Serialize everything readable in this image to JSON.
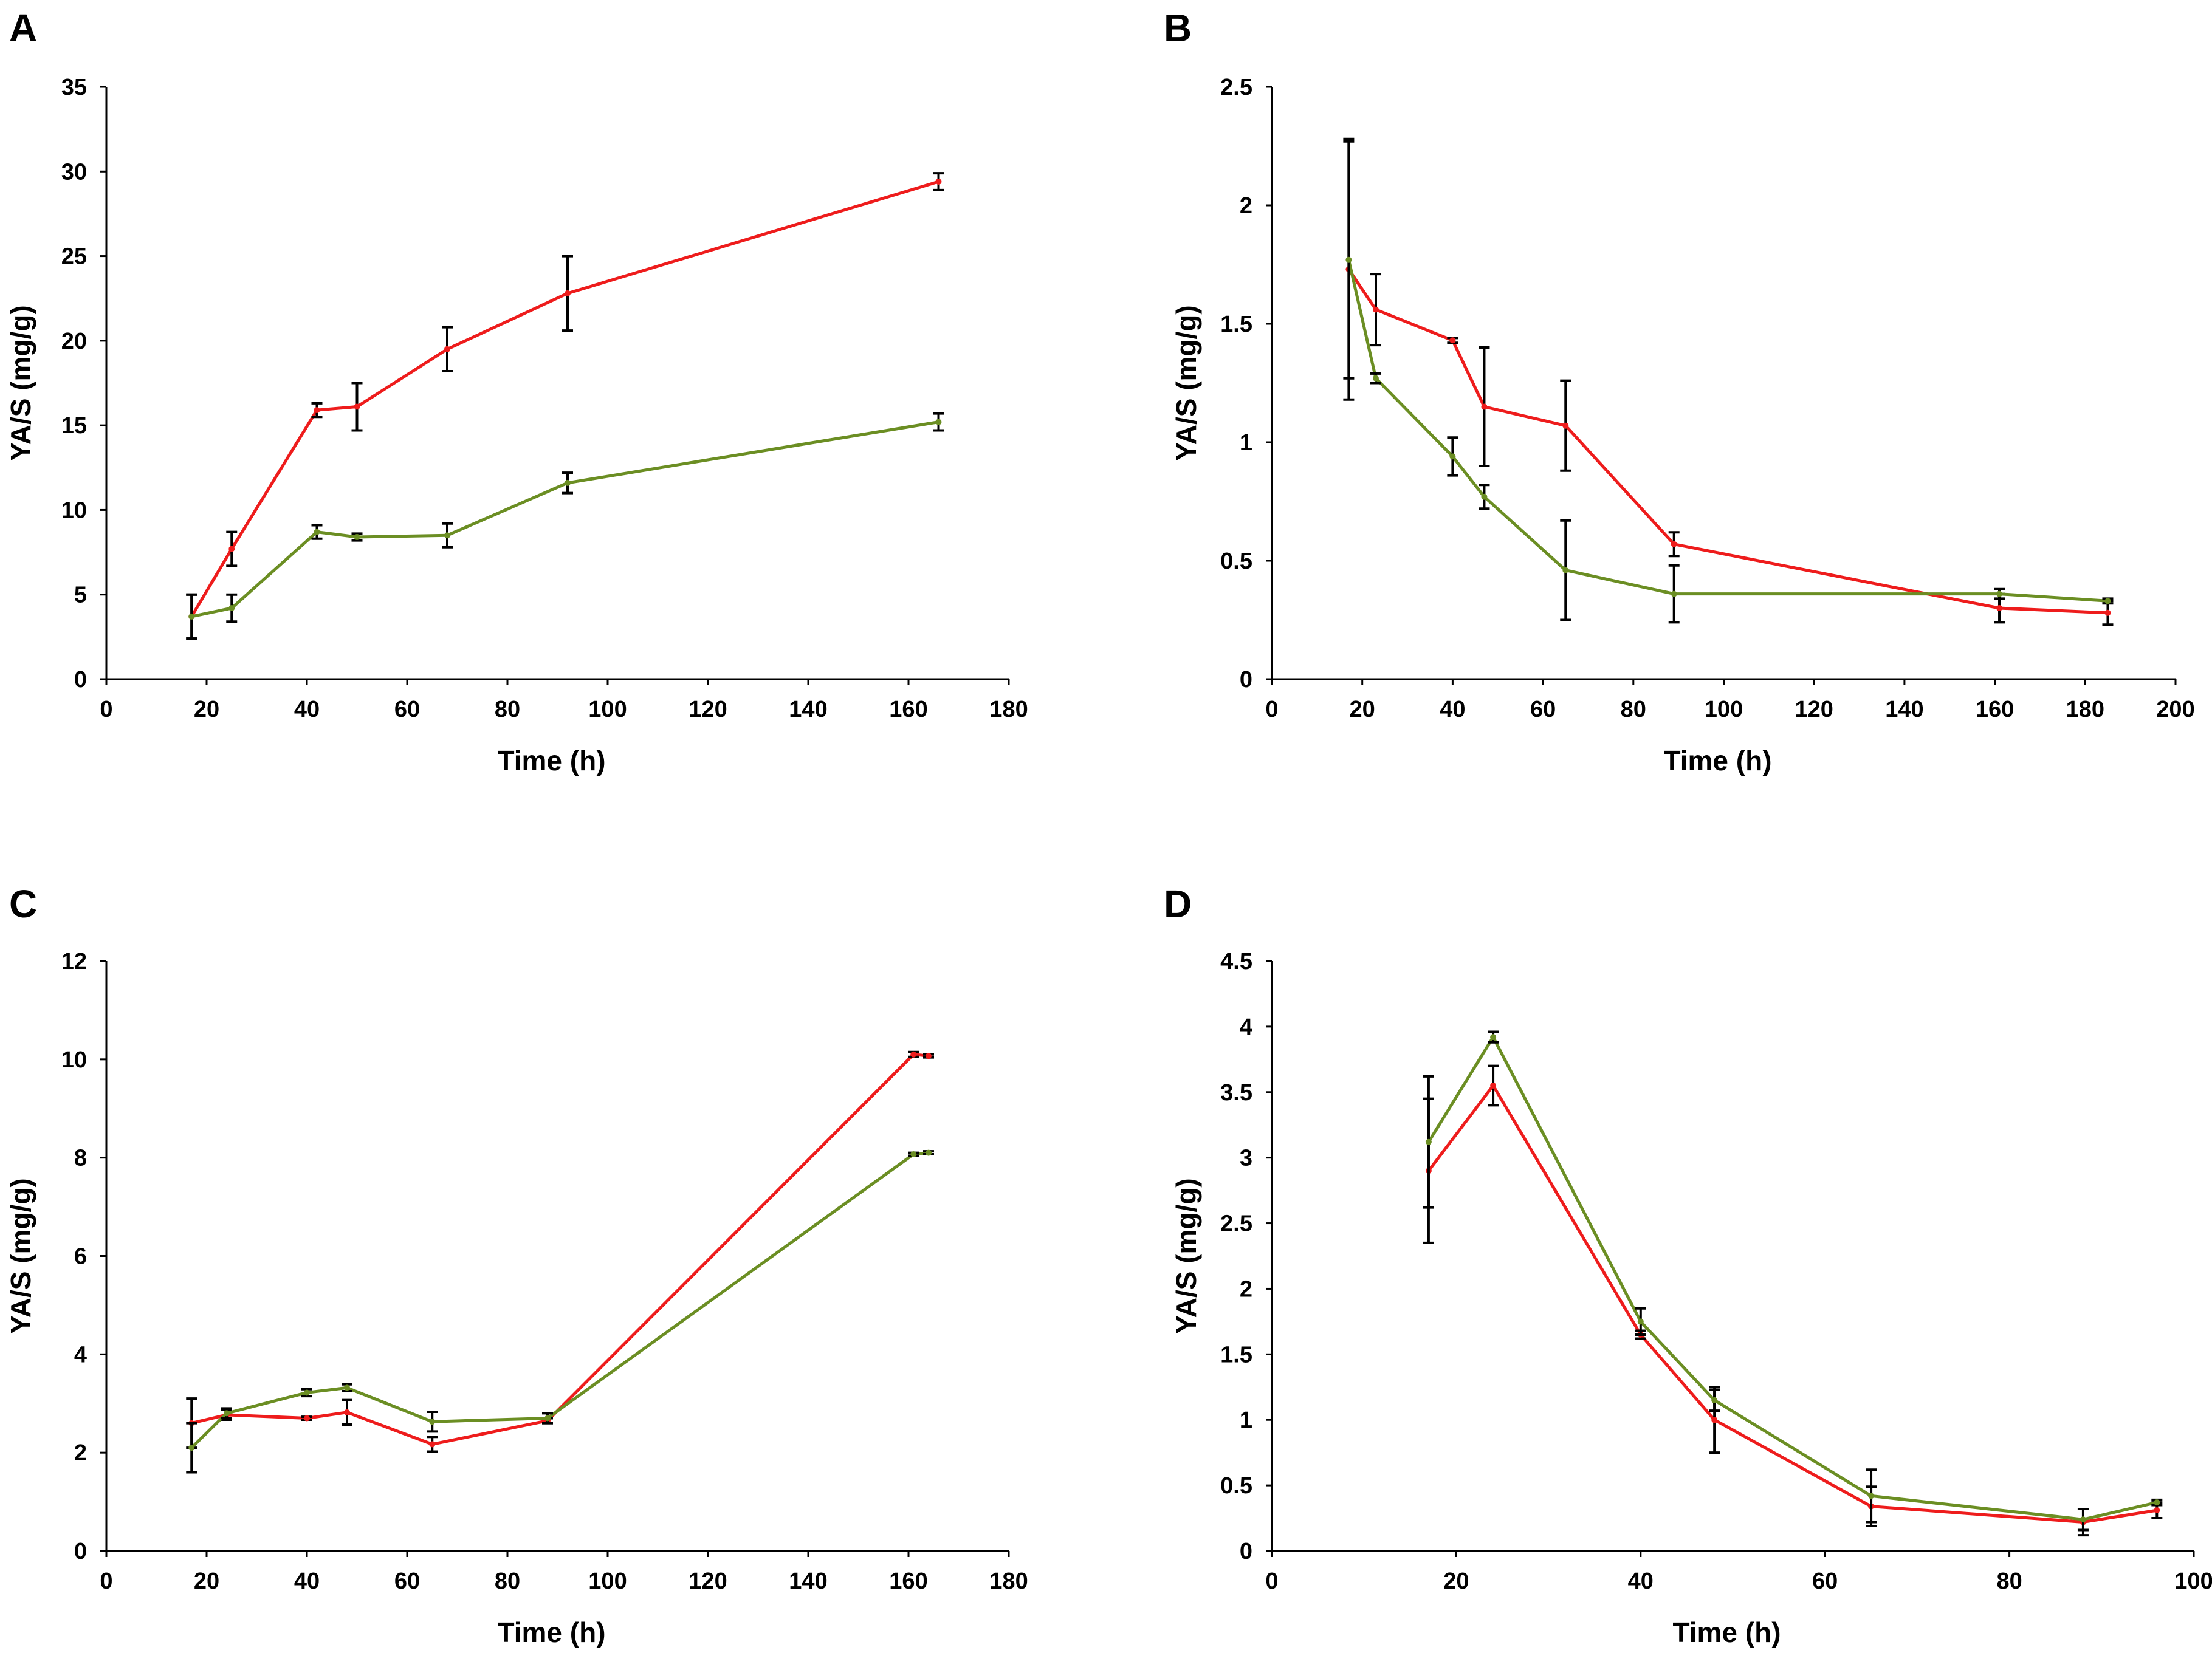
{
  "chart_data": [
    {
      "panel": "A",
      "type": "line",
      "xlabel": "Time (h)",
      "ylabel": "YA/S (mg/g)",
      "xlim": [
        0,
        180
      ],
      "ylim": [
        0,
        35
      ],
      "xticks": [
        "0",
        "20",
        "40",
        "60",
        "80",
        "100",
        "120",
        "140",
        "160",
        "180"
      ],
      "yticks": [
        "0",
        "5",
        "10",
        "15",
        "20",
        "25",
        "30",
        "35"
      ],
      "series": [
        {
          "name": "red",
          "color": "#ee1c1c",
          "points": [
            {
              "x": 17,
              "y": 3.7,
              "err": 1.3
            },
            {
              "x": 25,
              "y": 7.7,
              "err": 1.0
            },
            {
              "x": 42,
              "y": 15.9,
              "err": 0.4
            },
            {
              "x": 50,
              "y": 16.1,
              "err": 1.4
            },
            {
              "x": 68,
              "y": 19.5,
              "err": 1.3
            },
            {
              "x": 92,
              "y": 22.8,
              "err": 2.2
            },
            {
              "x": 166,
              "y": 29.4,
              "err": 0.5
            }
          ]
        },
        {
          "name": "green",
          "color": "#6b8e23",
          "points": [
            {
              "x": 17,
              "y": 3.7,
              "err": 1.3
            },
            {
              "x": 25,
              "y": 4.2,
              "err": 0.8
            },
            {
              "x": 42,
              "y": 8.7,
              "err": 0.4
            },
            {
              "x": 50,
              "y": 8.4,
              "err": 0.2
            },
            {
              "x": 68,
              "y": 8.5,
              "err": 0.7
            },
            {
              "x": 92,
              "y": 11.6,
              "err": 0.6
            },
            {
              "x": 166,
              "y": 15.2,
              "err": 0.5
            }
          ]
        }
      ]
    },
    {
      "panel": "B",
      "type": "line",
      "xlabel": "Time (h)",
      "ylabel": "YA/S (mg/g)",
      "xlim": [
        0,
        200
      ],
      "ylim": [
        0,
        2.5
      ],
      "xticks": [
        "0",
        "20",
        "40",
        "60",
        "80",
        "100",
        "120",
        "140",
        "160",
        "180",
        "200"
      ],
      "yticks": [
        "0",
        "0.5",
        "1",
        "1.5",
        "2",
        "2.5"
      ],
      "series": [
        {
          "name": "red",
          "color": "#ee1c1c",
          "points": [
            {
              "x": 17,
              "y": 1.73,
              "err": 0.55
            },
            {
              "x": 23,
              "y": 1.56,
              "err": 0.15
            },
            {
              "x": 40,
              "y": 1.43,
              "err": 0.01
            },
            {
              "x": 47,
              "y": 1.15,
              "err": 0.25
            },
            {
              "x": 65,
              "y": 1.07,
              "err": 0.19
            },
            {
              "x": 89,
              "y": 0.57,
              "err": 0.05
            },
            {
              "x": 161,
              "y": 0.3,
              "err": 0.06
            },
            {
              "x": 185,
              "y": 0.28,
              "err": 0.05
            }
          ]
        },
        {
          "name": "green",
          "color": "#6b8e23",
          "points": [
            {
              "x": 17,
              "y": 1.77,
              "err": 0.5
            },
            {
              "x": 23,
              "y": 1.27,
              "err": 0.02
            },
            {
              "x": 40,
              "y": 0.94,
              "err": 0.08
            },
            {
              "x": 47,
              "y": 0.77,
              "err": 0.05
            },
            {
              "x": 65,
              "y": 0.46,
              "err": 0.21
            },
            {
              "x": 89,
              "y": 0.36,
              "err": 0.12
            },
            {
              "x": 161,
              "y": 0.36,
              "err": 0.02
            },
            {
              "x": 185,
              "y": 0.33,
              "err": 0.01
            }
          ]
        }
      ]
    },
    {
      "panel": "C",
      "type": "line",
      "xlabel": "Time (h)",
      "ylabel": "YA/S (mg/g)",
      "xlim": [
        0,
        180
      ],
      "ylim": [
        0,
        12
      ],
      "xticks": [
        "0",
        "20",
        "40",
        "60",
        "80",
        "100",
        "120",
        "140",
        "160",
        "180"
      ],
      "yticks": [
        "0",
        "2",
        "4",
        "6",
        "8",
        "10",
        "12"
      ],
      "series": [
        {
          "name": "red",
          "color": "#ee1c1c",
          "points": [
            {
              "x": 17,
              "y": 2.6,
              "err": 0.5
            },
            {
              "x": 24,
              "y": 2.77,
              "err": 0.1
            },
            {
              "x": 40,
              "y": 2.7,
              "err": 0.03
            },
            {
              "x": 48,
              "y": 2.82,
              "err": 0.25
            },
            {
              "x": 65,
              "y": 2.17,
              "err": 0.15
            },
            {
              "x": 88,
              "y": 2.65,
              "err": 0.05
            },
            {
              "x": 161,
              "y": 10.1,
              "err": 0.05
            },
            {
              "x": 164,
              "y": 10.07,
              "err": 0.03
            }
          ]
        },
        {
          "name": "green",
          "color": "#6b8e23",
          "points": [
            {
              "x": 17,
              "y": 2.1,
              "err": 0.5
            },
            {
              "x": 24,
              "y": 2.8,
              "err": 0.1
            },
            {
              "x": 40,
              "y": 3.22,
              "err": 0.07
            },
            {
              "x": 48,
              "y": 3.32,
              "err": 0.07
            },
            {
              "x": 65,
              "y": 2.63,
              "err": 0.2
            },
            {
              "x": 88,
              "y": 2.7,
              "err": 0.1
            },
            {
              "x": 161,
              "y": 8.07,
              "err": 0.03
            },
            {
              "x": 164,
              "y": 8.1,
              "err": 0.03
            }
          ]
        }
      ]
    },
    {
      "panel": "D",
      "type": "line",
      "xlabel": "Time (h)",
      "ylabel": "YA/S (mg/g)",
      "xlim": [
        0,
        100
      ],
      "ylim": [
        0,
        4.5
      ],
      "xticks": [
        "0",
        "20",
        "40",
        "60",
        "80",
        "100"
      ],
      "yticks": [
        "0",
        "0.5",
        "1",
        "1.5",
        "2",
        "2.5",
        "3",
        "3.5",
        "4",
        "4.5"
      ],
      "series": [
        {
          "name": "red",
          "color": "#ee1c1c",
          "points": [
            {
              "x": 17,
              "y": 2.9,
              "err": 0.55
            },
            {
              "x": 24,
              "y": 3.55,
              "err": 0.15
            },
            {
              "x": 40,
              "y": 1.65,
              "err": 0.03
            },
            {
              "x": 48,
              "y": 1.0,
              "err": 0.25
            },
            {
              "x": 65,
              "y": 0.34,
              "err": 0.15
            },
            {
              "x": 88,
              "y": 0.22,
              "err": 0.1
            },
            {
              "x": 96,
              "y": 0.31,
              "err": 0.06
            }
          ]
        },
        {
          "name": "green",
          "color": "#6b8e23",
          "points": [
            {
              "x": 17,
              "y": 3.12,
              "err": 0.5
            },
            {
              "x": 24,
              "y": 3.92,
              "err": 0.04
            },
            {
              "x": 40,
              "y": 1.75,
              "err": 0.1
            },
            {
              "x": 48,
              "y": 1.15,
              "err": 0.08
            },
            {
              "x": 65,
              "y": 0.42,
              "err": 0.2
            },
            {
              "x": 88,
              "y": 0.24,
              "err": 0.08
            },
            {
              "x": 96,
              "y": 0.37,
              "err": 0.02
            }
          ]
        }
      ]
    }
  ]
}
